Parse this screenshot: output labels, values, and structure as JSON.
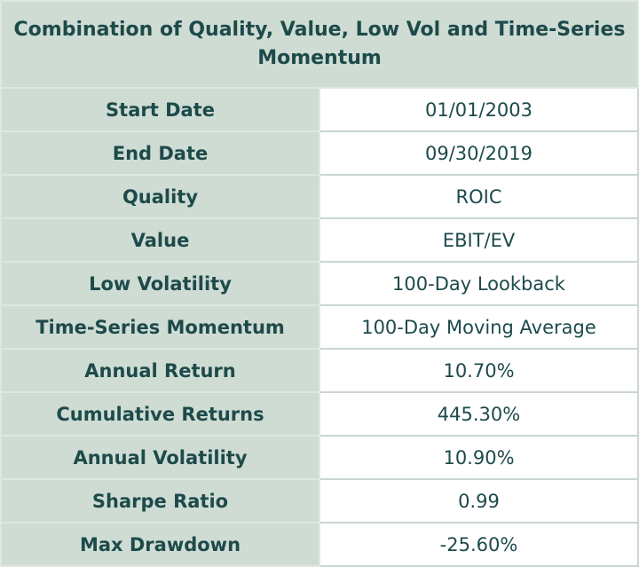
{
  "table": {
    "title": "Combination of Quality, Value, Low Vol and Time-Series Momentum",
    "rows": [
      [
        "Start Date",
        "01/01/2003"
      ],
      [
        "End Date",
        "09/30/2019"
      ],
      [
        "Quality",
        "ROIC"
      ],
      [
        "Value",
        "EBIT/EV"
      ],
      [
        "Low Volatility",
        "100-Day Lookback"
      ],
      [
        "Time-Series Momentum",
        "100-Day Moving Average"
      ],
      [
        "Annual Return",
        "10.70%"
      ],
      [
        "Cumulative Returns",
        "445.30%"
      ],
      [
        "Annual Volatility",
        "10.90%"
      ],
      [
        "Sharpe Ratio",
        "0.99"
      ],
      [
        "Max Drawdown",
        "-25.60%"
      ]
    ]
  }
}
